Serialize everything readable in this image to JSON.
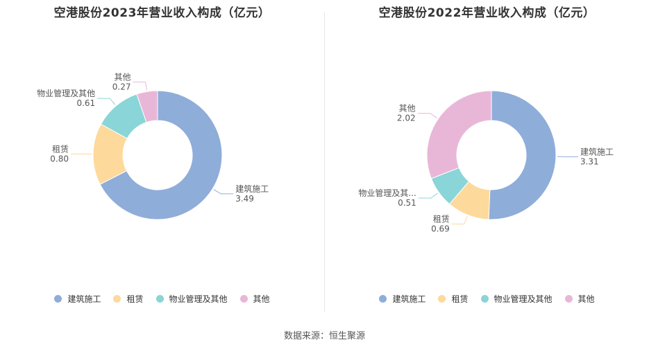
{
  "source": "数据来源：恒生聚源",
  "chart_data": [
    {
      "type": "pie",
      "title": "空港股份2023年营业收入构成（亿元）",
      "categories": [
        "建筑施工",
        "租赁",
        "物业管理及其他",
        "其他"
      ],
      "values": [
        3.49,
        0.8,
        0.61,
        0.27
      ],
      "value_labels": [
        "3.49",
        "0.80",
        "0.61",
        "0.27"
      ],
      "slice_labels": [
        "建筑施工",
        "租赁",
        "物业管理及其他",
        "其他"
      ],
      "colors": [
        "#8fadd9",
        "#fdd99b",
        "#8ad5d7",
        "#e8b7d8"
      ],
      "legend": [
        "建筑施工",
        "租赁",
        "物业管理及其他",
        "其他"
      ],
      "legend_position": "bottom",
      "donut": true
    },
    {
      "type": "pie",
      "title": "空港股份2022年营业收入构成（亿元）",
      "categories": [
        "建筑施工",
        "租赁",
        "物业管理及其他",
        "其他"
      ],
      "values": [
        3.31,
        0.69,
        0.51,
        2.02
      ],
      "value_labels": [
        "3.31",
        "0.69",
        "0.51",
        "2.02"
      ],
      "slice_labels": [
        "建筑施工",
        "租赁",
        "物业管理及其...",
        "其他"
      ],
      "colors": [
        "#8fadd9",
        "#fdd99b",
        "#8ad5d7",
        "#e8b7d8"
      ],
      "legend": [
        "建筑施工",
        "租赁",
        "物业管理及其他",
        "其他"
      ],
      "legend_position": "bottom",
      "donut": true
    }
  ]
}
